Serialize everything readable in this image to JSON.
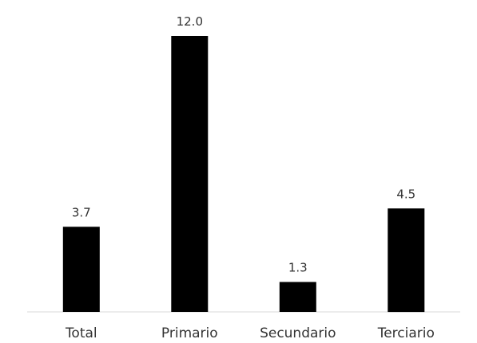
{
  "chart_data": {
    "type": "bar",
    "categories": [
      "Total",
      "Primario",
      "Secundario",
      "Terciario"
    ],
    "values": [
      3.7,
      12.0,
      1.3,
      4.5
    ],
    "data_labels": [
      "3.7",
      "12.0",
      "1.3",
      "4.5"
    ],
    "title": "",
    "xlabel": "",
    "ylabel": "",
    "ylim": [
      0,
      12.0
    ],
    "grid": false,
    "legend": "none",
    "bar_color": "#000000",
    "axis_color": "#d9d9d9"
  }
}
